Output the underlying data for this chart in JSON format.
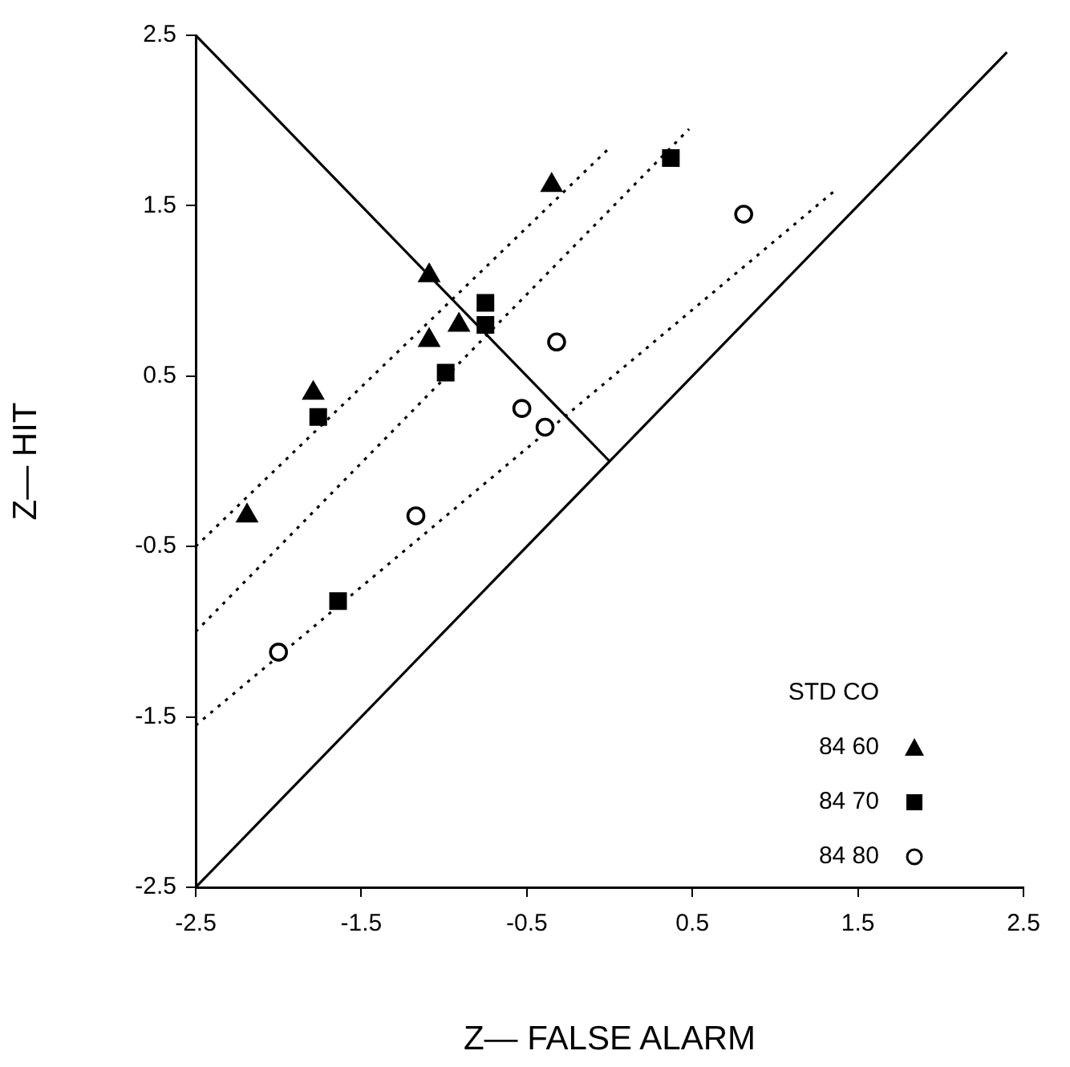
{
  "chart_data": {
    "type": "scatter",
    "xlabel": "Z— FALSE ALARM",
    "ylabel": "Z— HIT",
    "legend_title": "STD CO",
    "legend": "bottom right",
    "grid": false,
    "xlim": [
      -2.5,
      2.5
    ],
    "xticks": [
      -2.5,
      -1.5,
      -0.5,
      0.5,
      1.5,
      2.5
    ],
    "ylim": [
      -2.5,
      2.5
    ],
    "yticks": [
      -2.5,
      -1.5,
      -0.5,
      0.5,
      1.5,
      2.5
    ],
    "series": [
      {
        "name": "84 60",
        "color": "#000000",
        "marker": "triangle",
        "x": [
          -2.19,
          -1.79,
          -1.09,
          -1.09,
          -0.91,
          -0.35
        ],
        "values": [
          -0.32,
          0.4,
          0.71,
          1.09,
          0.8,
          1.62
        ]
      },
      {
        "name": "84 70",
        "color": "#000000",
        "marker": "square",
        "x": [
          -1.76,
          -0.99,
          -0.75,
          -0.75,
          0.37,
          -1.64
        ],
        "values": [
          0.26,
          0.52,
          0.93,
          0.8,
          1.78,
          -0.82
        ]
      },
      {
        "name": "84 80",
        "color": "#000000",
        "marker": "circle",
        "x": [
          -2.0,
          -1.17,
          -0.53,
          -0.39,
          -0.32,
          0.81
        ],
        "values": [
          -1.12,
          -0.32,
          0.31,
          0.2,
          0.7,
          1.45
        ]
      },
      {
        "type": "line",
        "color": "#000000",
        "line_style": "solid",
        "marker": "none",
        "x": [
          -2.5,
          2.4
        ],
        "values": [
          -2.5,
          2.4
        ]
      },
      {
        "type": "line",
        "color": "#000000",
        "line_style": "solid",
        "marker": "none",
        "x": [
          -2.5,
          0
        ],
        "values": [
          2.5,
          0
        ]
      },
      {
        "type": "line",
        "color": "#000000",
        "line_style": "dotted",
        "marker": "none",
        "x": [
          -2.5,
          0.0
        ],
        "values": [
          -0.5,
          1.84
        ]
      },
      {
        "type": "line",
        "color": "#000000",
        "line_style": "dotted",
        "marker": "none",
        "x": [
          -2.5,
          0.48
        ],
        "values": [
          -1.0,
          1.95
        ]
      },
      {
        "type": "line",
        "color": "#000000",
        "line_style": "dotted",
        "marker": "none",
        "x": [
          -2.5,
          1.35
        ],
        "values": [
          -1.55,
          1.58
        ]
      }
    ]
  }
}
